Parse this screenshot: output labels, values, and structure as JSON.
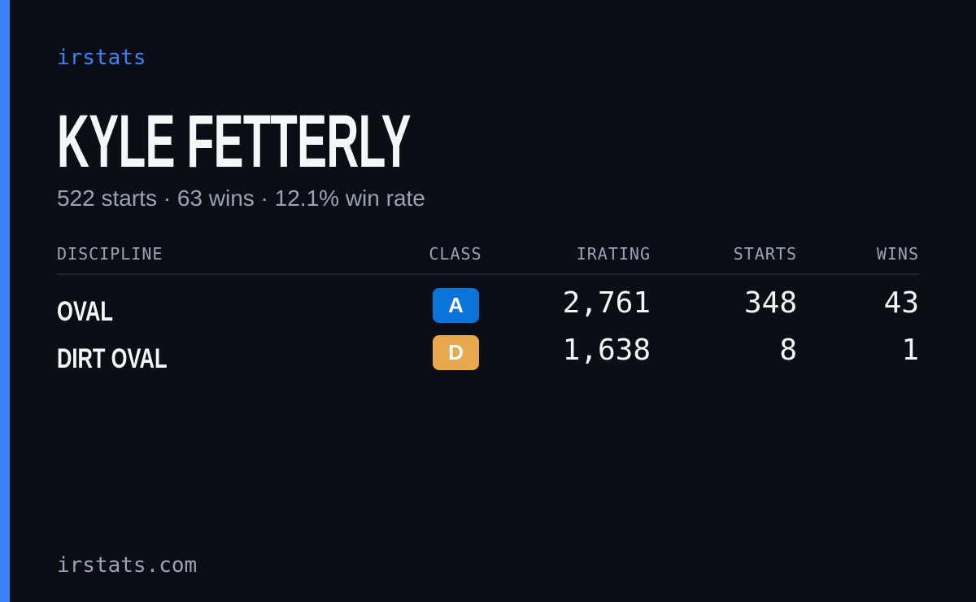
{
  "brand": "irstats",
  "driver": {
    "name": "KYLE FETTERLY",
    "summary": "522 starts · 63 wins · 12.1% win rate"
  },
  "table": {
    "headers": [
      "DISCIPLINE",
      "CLASS",
      "IRATING",
      "STARTS",
      "WINS"
    ],
    "rows": [
      {
        "discipline": "OVAL",
        "class": "A",
        "class_color": "#0a74da",
        "irating": "2,761",
        "starts": "348",
        "wins": "43"
      },
      {
        "discipline": "DIRT OVAL",
        "class": "D",
        "class_color": "#e8a94e",
        "irating": "1,638",
        "starts": "8",
        "wins": "1"
      }
    ]
  },
  "footer": "irstats.com"
}
